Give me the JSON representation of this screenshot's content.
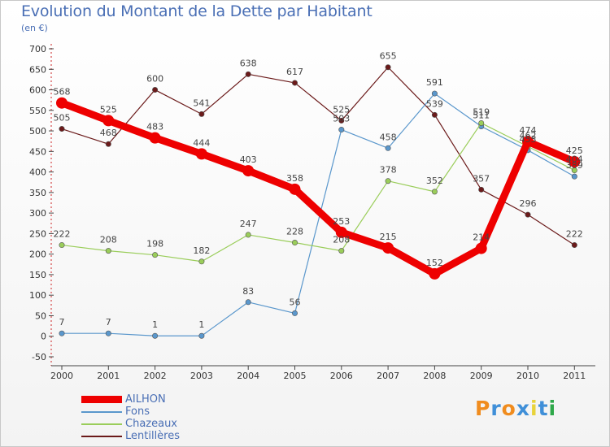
{
  "title": "Evolution du Montant de la Dette par Habitant",
  "unit": "(en €)",
  "logo": {
    "text": "Proxiti",
    "letter_colors": [
      "#f08c1e",
      "#3f8fd8",
      "#f08c1e",
      "#3f8fd8",
      "#e8d33a",
      "#3f8fd8",
      "#2ea84a"
    ]
  },
  "chart_data": {
    "type": "line",
    "x": [
      "2000",
      "2001",
      "2002",
      "2003",
      "2004",
      "2005",
      "2006",
      "2007",
      "2008",
      "2009",
      "2010",
      "2011"
    ],
    "ylim": [
      -50,
      700
    ],
    "yticks": [
      -50,
      0,
      50,
      100,
      150,
      200,
      250,
      300,
      350,
      400,
      450,
      500,
      550,
      600,
      650,
      700
    ],
    "grid": false,
    "legend_position": "bottom-left",
    "series": [
      {
        "name": "Lentillères",
        "color": "#6b1a1a",
        "values": [
          505,
          468,
          600,
          541,
          638,
          617,
          525,
          655,
          539,
          357,
          296,
          222
        ],
        "labels": [
          "505",
          "468",
          "600",
          "541",
          "638",
          "617",
          "525",
          "655",
          "539",
          "357",
          "296",
          "222"
        ]
      },
      {
        "name": "Fons",
        "color": "#5a97cc",
        "values": [
          7,
          7,
          1,
          1,
          83,
          56,
          503,
          458,
          591,
          511,
          453,
          389
        ],
        "labels": [
          "7",
          "7",
          "1",
          "1",
          "83",
          "56",
          "503",
          "458",
          "591",
          "511",
          "453",
          "389"
        ]
      },
      {
        "name": "Chazeaux",
        "color": "#9acd5a",
        "values": [
          222,
          208,
          198,
          182,
          247,
          228,
          208,
          378,
          352,
          519,
          462,
          404
        ],
        "labels": [
          "222",
          "208",
          "198",
          "182",
          "247",
          "228",
          "208",
          "378",
          "352",
          "519",
          "462",
          "404"
        ]
      },
      {
        "name": "AILHON",
        "color": "#ee0000",
        "values": [
          568,
          525,
          483,
          444,
          403,
          358,
          253,
          215,
          152,
          214,
          474,
          425
        ],
        "labels": [
          "568",
          "525",
          "483",
          "444",
          "403",
          "358",
          "253",
          "215",
          "152",
          "214",
          "474",
          "425"
        ]
      }
    ],
    "legend_order": [
      "AILHON",
      "Fons",
      "Chazeaux",
      "Lentillères"
    ]
  }
}
